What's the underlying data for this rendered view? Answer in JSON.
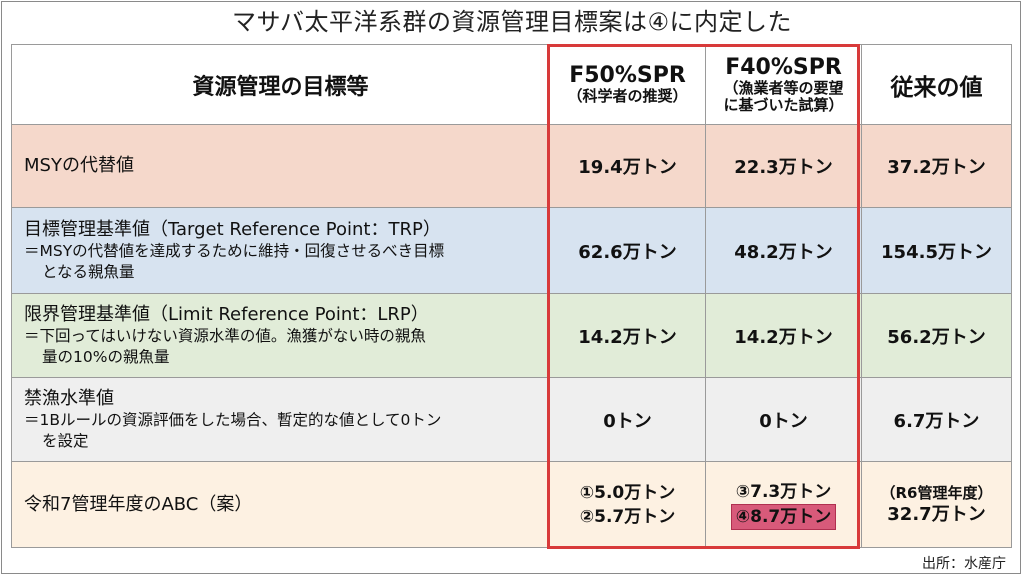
{
  "title": "マサバ太平洋系群の資源管理目標案は④に内定した",
  "header": {
    "label": "資源管理の目標等",
    "col_f50": {
      "main": "F50%SPR",
      "sub": "（科学者の推奨）"
    },
    "col_f40": {
      "main": "F40%SPR",
      "sub1": "（漁業者等の要望",
      "sub2": "に基づいた試算）"
    },
    "col_prev": "従来の値"
  },
  "rows": {
    "msy": {
      "name": "MSYの代替値",
      "f50": "19.4万トン",
      "f40": "22.3万トン",
      "prev": "37.2万トン"
    },
    "trp": {
      "name": "目標管理基準値（Target Reference Point：TRP）",
      "desc1": "＝MSYの代替値を達成するために維持・回復させるべき目標",
      "desc2": "となる親魚量",
      "f50": "62.6万トン",
      "f40": "48.2万トン",
      "prev": "154.5万トン"
    },
    "lrp": {
      "name": "限界管理基準値（Limit Reference Point：LRP）",
      "desc1": "＝下回ってはいけない資源水準の値。漁獲がない時の親魚",
      "desc2": "量の10%の親魚量",
      "f50": "14.2万トン",
      "f40": "14.2万トン",
      "prev": "56.2万トン"
    },
    "ban": {
      "name": "禁漁水準値",
      "desc1": "＝1Bルールの資源評価をした場合、暫定的な値として0トン",
      "desc2": "を設定",
      "f50": "0トン",
      "f40": "0トン",
      "prev": "6.7万トン"
    },
    "abc": {
      "name": "令和7管理年度のABC（案）",
      "f50_1": "①5.0万トン",
      "f50_2": "②5.7万トン",
      "f40_1": "③7.3万トン",
      "f40_2": "④8.7万トン",
      "prev_1": "（R6管理年度）",
      "prev_2": "32.7万トン"
    }
  },
  "source": "出所：水産庁",
  "colors": {
    "highlight": "#d85a7a",
    "frame": "#d83a3a"
  }
}
